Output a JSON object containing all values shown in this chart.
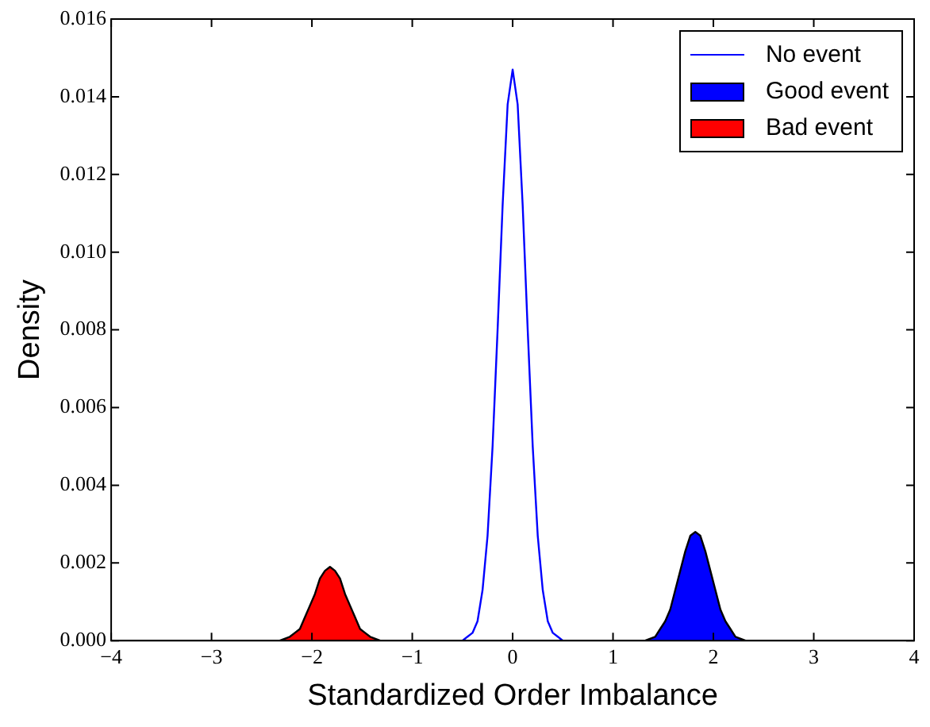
{
  "chart_data": {
    "type": "line",
    "xlabel": "Standardized Order Imbalance",
    "ylabel": "Density",
    "xlim": [
      -4,
      4
    ],
    "xticks": [
      {
        "value": -4,
        "label": "−4"
      },
      {
        "value": -3,
        "label": "−3"
      },
      {
        "value": -2,
        "label": "−2"
      },
      {
        "value": -1,
        "label": "−1"
      },
      0,
      1,
      2,
      3,
      4
    ],
    "ylim": [
      0,
      0.016
    ],
    "yticks": [
      {
        "value": 0,
        "label": "0.000"
      },
      {
        "value": 0.002,
        "label": "0.002"
      },
      {
        "value": 0.004,
        "label": "0.004"
      },
      {
        "value": 0.006,
        "label": "0.006"
      },
      {
        "value": 0.008,
        "label": "0.008"
      },
      {
        "value": 0.01,
        "label": "0.010"
      },
      {
        "value": 0.012,
        "label": "0.012"
      },
      {
        "value": 0.014,
        "label": "0.014"
      },
      {
        "value": 0.016,
        "label": "0.016"
      }
    ],
    "grid": false,
    "legend": "top right",
    "marker": "none",
    "line_style": "solid",
    "series": [
      {
        "name": "No event",
        "type": "line",
        "color": "#0000ff",
        "x": [
          -4,
          -0.5,
          -0.45,
          -0.4,
          -0.35,
          -0.3,
          -0.25,
          -0.2,
          -0.15,
          -0.1,
          -0.05,
          0,
          0.05,
          0.1,
          0.15,
          0.2,
          0.25,
          0.3,
          0.35,
          0.4,
          0.45,
          0.5,
          4
        ],
        "values": [
          0,
          0,
          0.0001,
          0.0002,
          0.0005,
          0.0013,
          0.0027,
          0.005,
          0.008,
          0.0112,
          0.0138,
          0.0147,
          0.0138,
          0.0112,
          0.008,
          0.005,
          0.0027,
          0.0013,
          0.0005,
          0.0002,
          0.0001,
          0,
          0
        ]
      },
      {
        "name": "Good event",
        "type": "area",
        "color": "#0000ff",
        "x": [
          -4,
          1.32,
          1.42,
          1.47,
          1.52,
          1.57,
          1.62,
          1.67,
          1.72,
          1.77,
          1.82,
          1.87,
          1.92,
          1.97,
          2.02,
          2.07,
          2.12,
          2.17,
          2.22,
          2.32,
          4
        ],
        "values": [
          0,
          0,
          0.0001,
          0.0003,
          0.0005,
          0.0008,
          0.0013,
          0.0018,
          0.0023,
          0.0027,
          0.0028,
          0.0027,
          0.0023,
          0.0018,
          0.0013,
          0.0008,
          0.0005,
          0.0003,
          0.0001,
          0,
          0
        ]
      },
      {
        "name": "Bad event",
        "type": "area",
        "color": "#ff0000",
        "x": [
          -4,
          -2.32,
          -2.22,
          -2.17,
          -2.12,
          -2.07,
          -2.02,
          -1.97,
          -1.92,
          -1.87,
          -1.82,
          -1.77,
          -1.72,
          -1.67,
          -1.62,
          -1.57,
          -1.52,
          -1.47,
          -1.42,
          -1.32,
          4
        ],
        "values": [
          0,
          0,
          0.0001,
          0.0002,
          0.0003,
          0.0006,
          0.0009,
          0.0012,
          0.0016,
          0.0018,
          0.0019,
          0.0018,
          0.0016,
          0.0012,
          0.0009,
          0.0006,
          0.0003,
          0.0002,
          0.0001,
          0,
          0
        ]
      }
    ]
  }
}
